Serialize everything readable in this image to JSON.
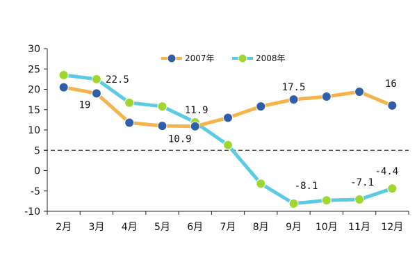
{
  "chart_data": {
    "type": "line",
    "categories": [
      "2月",
      "3月",
      "4月",
      "5月",
      "6月",
      "7月",
      "8月",
      "9月",
      "10月",
      "11月",
      "12月"
    ],
    "ylim": [
      -10,
      30
    ],
    "yticks": [
      30,
      25,
      20,
      15,
      10,
      5,
      0,
      -5,
      -10
    ],
    "reference_line": 5,
    "legend_position": "top-center",
    "series": [
      {
        "name": "2007年",
        "line_color": "#f4b44b",
        "marker_color": "#2f5fa8",
        "values": [
          20.5,
          19,
          11.8,
          11,
          10.9,
          13,
          15.8,
          17.5,
          18.2,
          19.4,
          16
        ]
      },
      {
        "name": "2008年",
        "line_color": "#5bcbe3",
        "marker_color": "#9fd630",
        "values": [
          23.5,
          22.5,
          16.7,
          15.8,
          11.9,
          6.3,
          -3.2,
          -8.1,
          -7.3,
          -7.1,
          -4.4
        ]
      }
    ],
    "data_labels": [
      {
        "series": 0,
        "index": 1,
        "text": "19",
        "offset": [
          -17,
          16
        ]
      },
      {
        "series": 1,
        "index": 1,
        "text": "22.5",
        "offset": [
          30,
          0
        ]
      },
      {
        "series": 1,
        "index": 4,
        "text": "11.9",
        "offset": [
          2,
          -18
        ]
      },
      {
        "series": 0,
        "index": 4,
        "text": "10.9",
        "offset": [
          -22,
          18
        ]
      },
      {
        "series": 0,
        "index": 7,
        "text": "17.5",
        "offset": [
          0,
          -18
        ]
      },
      {
        "series": 0,
        "index": 10,
        "text": "16",
        "offset": [
          -2,
          -32
        ]
      },
      {
        "series": 1,
        "index": 7,
        "text": "-8.1",
        "offset": [
          18,
          -26
        ]
      },
      {
        "series": 1,
        "index": 9,
        "text": "-7.1",
        "offset": [
          4,
          -25
        ]
      },
      {
        "series": 1,
        "index": 10,
        "text": "-4.4",
        "offset": [
          -8,
          -25
        ]
      }
    ]
  }
}
